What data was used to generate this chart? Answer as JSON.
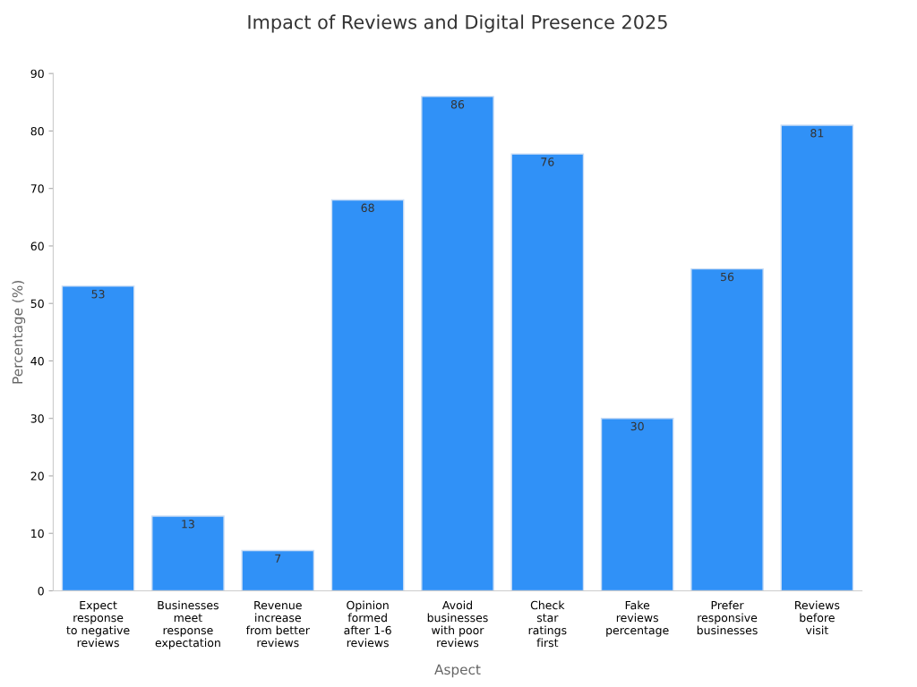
{
  "chart_data": {
    "type": "bar",
    "title": "Impact of Reviews and Digital Presence 2025",
    "xlabel": "Aspect",
    "ylabel": "Percentage (%)",
    "categories": [
      "Expect\nresponse\nto negative\nreviews",
      "Businesses\nmeet\nresponse\nexpectation",
      "Revenue\nincrease\nfrom better\nreviews",
      "Opinion\nformed\nafter 1-6\nreviews",
      "Avoid\nbusinesses\nwith poor\nreviews",
      "Check\nstar\nratings\nfirst",
      "Fake\nreviews\npercentage",
      "Prefer\nresponsive\nbusinesses",
      "Reviews\nbefore\nvisit"
    ],
    "values": [
      53,
      13,
      7,
      68,
      86,
      76,
      30,
      56,
      81
    ],
    "color": "#3091f7",
    "ylim": [
      0,
      90
    ],
    "yticks": [
      0,
      10,
      20,
      30,
      40,
      50,
      60,
      70,
      80,
      90
    ],
    "data_labels": true,
    "grid": false,
    "legend": false
  }
}
